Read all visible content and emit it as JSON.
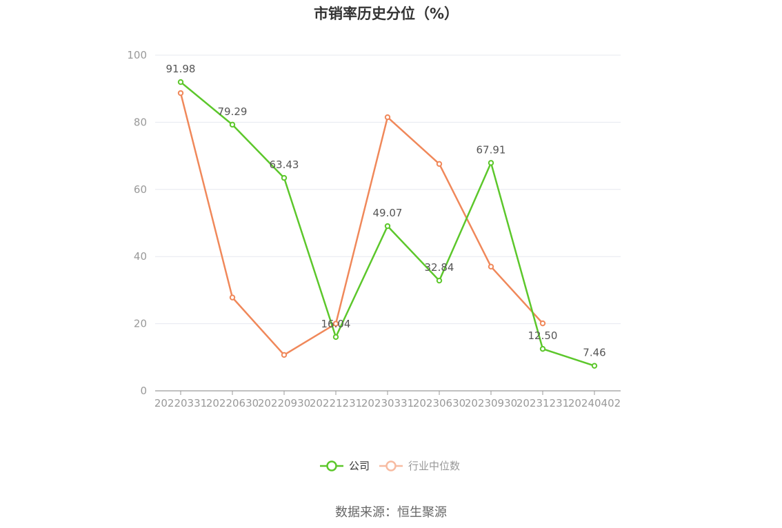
{
  "chart_data": {
    "type": "line",
    "title": "市销率历史分位（%）",
    "categories": [
      "20220331",
      "20220630",
      "20220930",
      "20221231",
      "20230331",
      "20230630",
      "20230930",
      "20231231",
      "20240402"
    ],
    "ylim": [
      0,
      100
    ],
    "yticks": [
      "0",
      "20",
      "40",
      "60",
      "80",
      "100"
    ],
    "grid": true,
    "legend_position": "bottom",
    "series": [
      {
        "name": "公司",
        "color": "#5cc72b",
        "values": [
          91.98,
          79.29,
          63.43,
          16.04,
          49.07,
          32.84,
          67.91,
          12.5,
          7.46
        ],
        "labels": [
          "91.98",
          "79.29",
          "63.43",
          "16.04",
          "49.07",
          "32.84",
          "67.91",
          "12.50",
          "7.46"
        ]
      },
      {
        "name": "行业中位数",
        "color": "#f0885a",
        "legend_color": "#f7bba1",
        "values": [
          88.7,
          27.8,
          10.7,
          20.0,
          81.5,
          67.6,
          37.0,
          20.1,
          null
        ]
      }
    ]
  },
  "source_text": "数据来源：恒生聚源"
}
